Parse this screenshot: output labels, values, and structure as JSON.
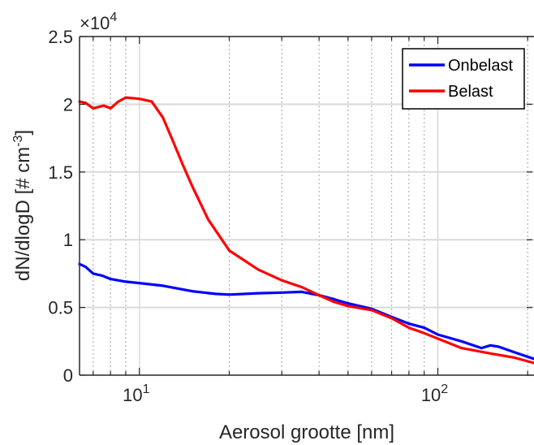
{
  "chart_data": {
    "type": "line",
    "xscale": "log",
    "xlim": [
      6.3,
      210
    ],
    "ylim": [
      0,
      25000
    ],
    "xlabel": "Aerosol grootte [nm]",
    "ylabel_main": "dN/dlogD [# cm",
    "ylabel_sup": "-3",
    "ylabel_end": "]",
    "y_exponent_base": "×10",
    "y_exponent_power": "4",
    "xticks": [
      {
        "value": 10,
        "base": "10",
        "exp": "1"
      },
      {
        "value": 100,
        "base": "10",
        "exp": "2"
      }
    ],
    "yticks": [
      {
        "value": 0,
        "label": "0"
      },
      {
        "value": 5000,
        "label": "0.5"
      },
      {
        "value": 10000,
        "label": "1"
      },
      {
        "value": 15000,
        "label": "1.5"
      },
      {
        "value": 20000,
        "label": "2"
      },
      {
        "value": 25000,
        "label": "2.5"
      }
    ],
    "grid": "on",
    "legend_position": "top-right",
    "series": [
      {
        "name": "Onbelast",
        "color": "#0000FF",
        "points": [
          [
            6.3,
            8200
          ],
          [
            6.6,
            8000
          ],
          [
            7.0,
            7500
          ],
          [
            7.5,
            7350
          ],
          [
            8.0,
            7100
          ],
          [
            9.0,
            6900
          ],
          [
            10.0,
            6800
          ],
          [
            12.0,
            6600
          ],
          [
            15.0,
            6200
          ],
          [
            18.0,
            6000
          ],
          [
            20.0,
            5950
          ],
          [
            25.0,
            6050
          ],
          [
            30.0,
            6100
          ],
          [
            35.0,
            6150
          ],
          [
            40.0,
            5900
          ],
          [
            45.0,
            5600
          ],
          [
            50.0,
            5300
          ],
          [
            60.0,
            4900
          ],
          [
            70.0,
            4300
          ],
          [
            80.0,
            3800
          ],
          [
            90.0,
            3500
          ],
          [
            100.0,
            3000
          ],
          [
            120.0,
            2500
          ],
          [
            140.0,
            2000
          ],
          [
            150.0,
            2200
          ],
          [
            160.0,
            2100
          ],
          [
            180.0,
            1700
          ],
          [
            210.0,
            1200
          ]
        ]
      },
      {
        "name": "Belast",
        "color": "#FF0000",
        "points": [
          [
            6.3,
            20200
          ],
          [
            6.6,
            20100
          ],
          [
            7.0,
            19700
          ],
          [
            7.3,
            19800
          ],
          [
            7.6,
            19900
          ],
          [
            8.0,
            19700
          ],
          [
            8.5,
            20200
          ],
          [
            9.0,
            20500
          ],
          [
            10.0,
            20400
          ],
          [
            11.0,
            20200
          ],
          [
            12.0,
            19000
          ],
          [
            13.0,
            17200
          ],
          [
            14.0,
            15500
          ],
          [
            15.0,
            14000
          ],
          [
            17.0,
            11500
          ],
          [
            20.0,
            9200
          ],
          [
            25.0,
            7800
          ],
          [
            30.0,
            7000
          ],
          [
            35.0,
            6500
          ],
          [
            40.0,
            5900
          ],
          [
            45.0,
            5400
          ],
          [
            50.0,
            5100
          ],
          [
            60.0,
            4800
          ],
          [
            70.0,
            4200
          ],
          [
            80.0,
            3500
          ],
          [
            90.0,
            3100
          ],
          [
            100.0,
            2700
          ],
          [
            120.0,
            2000
          ],
          [
            150.0,
            1600
          ],
          [
            180.0,
            1300
          ],
          [
            210.0,
            900
          ]
        ]
      }
    ]
  }
}
